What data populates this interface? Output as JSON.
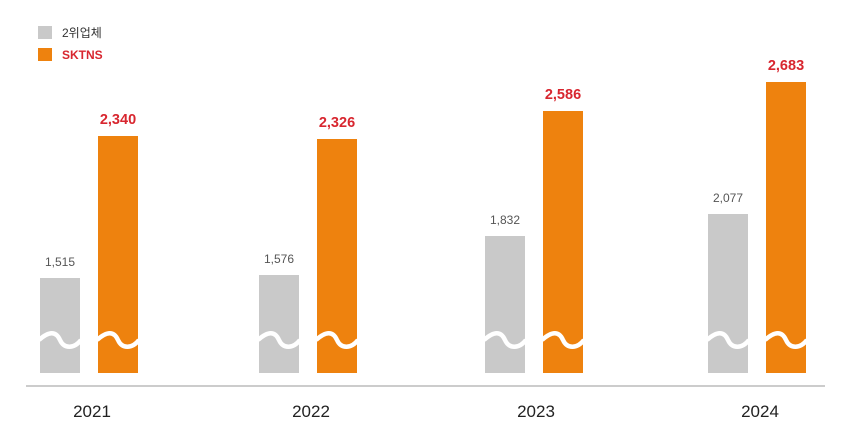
{
  "colors": {
    "series_gray": "#c9c9c9",
    "series_orange": "#ee820e",
    "orange_label": "#d8262f",
    "axis": "#999999"
  },
  "chart_data": {
    "type": "bar",
    "categories": [
      "2021",
      "2022",
      "2023",
      "2024"
    ],
    "series": [
      {
        "name": "2위업체",
        "values": [
          1515,
          1576,
          1832,
          2077
        ],
        "labels": [
          "1,515",
          "1,576",
          "1,832",
          "2,077"
        ]
      },
      {
        "name": "SKTNS",
        "values": [
          2340,
          2326,
          2586,
          2683
        ],
        "labels": [
          "2,340",
          "2,326",
          "2,586",
          "2,683"
        ]
      }
    ],
    "axis_break": true,
    "legend": "top-left",
    "grid": false
  }
}
